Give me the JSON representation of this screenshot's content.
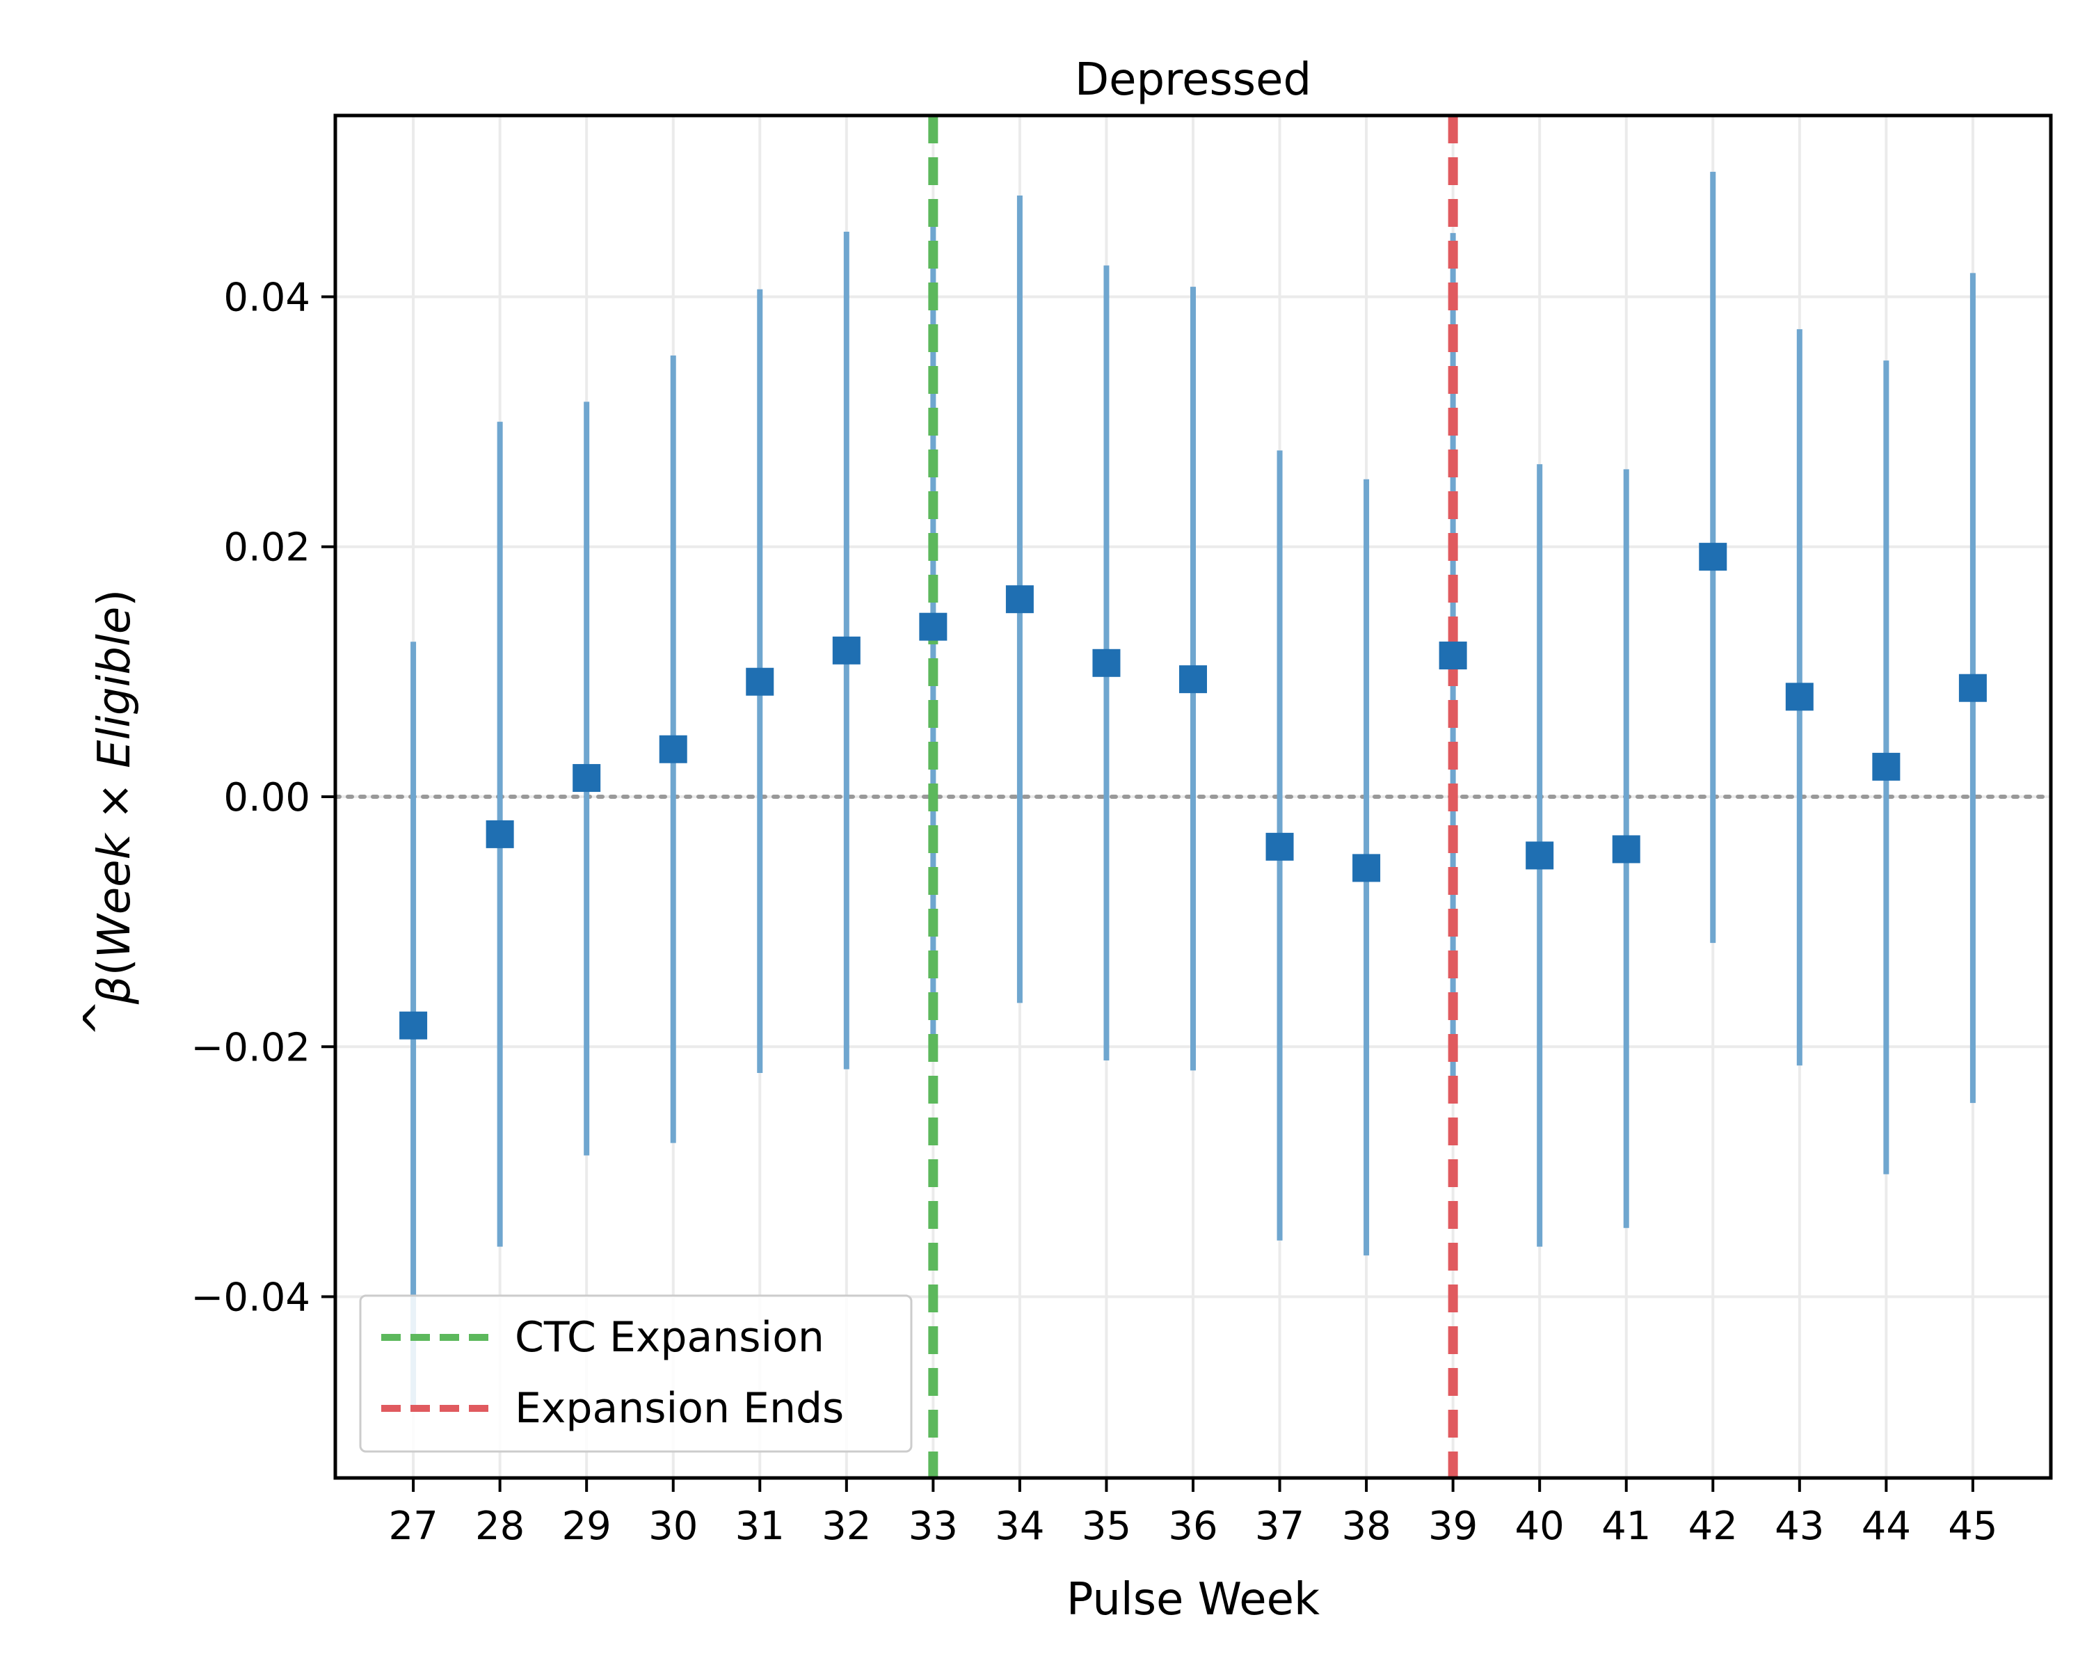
{
  "chart_data": {
    "type": "errorbar",
    "title": "Depressed",
    "xlabel": "Pulse Week",
    "ylabel": {
      "prefix": "(",
      "italic1": "Week",
      "op": " × ",
      "italic2": "Eligible",
      "suffix": ")",
      "symbol": "β",
      "hat": "^"
    },
    "x": [
      27,
      28,
      29,
      30,
      31,
      32,
      33,
      34,
      35,
      36,
      37,
      38,
      39,
      40,
      41,
      42,
      43,
      44,
      45
    ],
    "y": [
      -0.0183,
      -0.003,
      0.0015,
      0.0038,
      0.0092,
      0.0117,
      0.0136,
      0.0158,
      0.0107,
      0.0094,
      -0.004,
      -0.0057,
      0.0113,
      -0.0047,
      -0.0042,
      0.0192,
      0.008,
      0.0024,
      0.0087
    ],
    "ci_low": [
      -0.049,
      -0.036,
      -0.0287,
      -0.0277,
      -0.0221,
      -0.0218,
      -0.0195,
      -0.0165,
      -0.0211,
      -0.0219,
      -0.0355,
      -0.0367,
      -0.0225,
      -0.036,
      -0.0345,
      -0.0117,
      -0.0215,
      -0.0302,
      -0.0245
    ],
    "ci_high": [
      0.0124,
      0.03,
      0.0316,
      0.0353,
      0.0406,
      0.0452,
      0.0466,
      0.0481,
      0.0425,
      0.0408,
      0.0277,
      0.0254,
      0.0451,
      0.0266,
      0.0262,
      0.05,
      0.0374,
      0.0349,
      0.0419
    ],
    "xlim": [
      26.1,
      45.9
    ],
    "ylim": [
      -0.0545,
      0.0545
    ],
    "yticks": [
      -0.04,
      -0.02,
      0.0,
      0.02,
      0.04
    ],
    "ytick_labels": [
      "−0.04",
      "−0.02",
      "0.00",
      "0.02",
      "0.04"
    ],
    "grid": true,
    "reference_line_y": 0,
    "vlines": [
      {
        "x": 33,
        "label": "CTC Expansion",
        "color": "#5cb85c"
      },
      {
        "x": 39,
        "label": "Expansion Ends",
        "color": "#e05a5f"
      }
    ],
    "legend_position": "lower-left",
    "colors": {
      "marker": "#1f6fb2",
      "errorbar": "#6fa6cf",
      "grid": "#ebebeb",
      "zero_line": "#999999"
    }
  }
}
